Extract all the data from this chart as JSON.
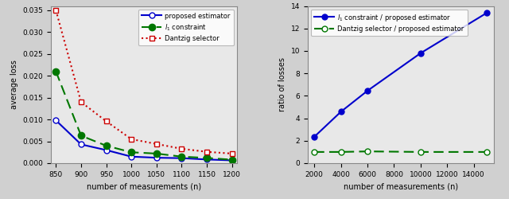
{
  "left": {
    "x": [
      850,
      900,
      950,
      1000,
      1050,
      1100,
      1150,
      1200
    ],
    "proposed": [
      0.0098,
      0.0043,
      0.003,
      0.0015,
      0.00125,
      0.00115,
      0.00085,
      0.00065
    ],
    "l1": [
      0.021,
      0.0063,
      0.004,
      0.0025,
      0.0022,
      0.0015,
      0.0012,
      0.0008
    ],
    "dantzig": [
      0.035,
      0.014,
      0.0096,
      0.0055,
      0.0044,
      0.0033,
      0.0026,
      0.0022
    ],
    "xlabel": "number of measurements (n)",
    "ylabel": "average loss",
    "xlim": [
      840,
      1210
    ],
    "ylim": [
      0,
      0.036
    ],
    "yticks": [
      0,
      0.005,
      0.01,
      0.015,
      0.02,
      0.025,
      0.03,
      0.035
    ],
    "xticks": [
      850,
      900,
      950,
      1000,
      1050,
      1100,
      1150,
      1200
    ],
    "proposed_color": "#0000cc",
    "l1_color": "#007700",
    "dantzig_color": "#cc0000",
    "legend_labels": [
      "proposed estimator",
      "$l_1$ constraint",
      "Dantzig selector"
    ]
  },
  "right": {
    "x": [
      2000,
      4000,
      6000,
      10000,
      15000
    ],
    "l1_ratio": [
      2.35,
      4.58,
      6.45,
      9.8,
      13.4
    ],
    "dantzig_ratio": [
      1.0,
      1.0,
      1.05,
      1.0,
      1.0
    ],
    "xlabel": "number of measurements (n)",
    "ylabel": "ratio of losses",
    "xlim": [
      1500,
      15500
    ],
    "ylim": [
      0,
      14
    ],
    "yticks": [
      0,
      2,
      4,
      6,
      8,
      10,
      12,
      14
    ],
    "xticks": [
      2000,
      4000,
      6000,
      8000,
      10000,
      12000,
      14000
    ],
    "l1_color": "#0000cc",
    "dantzig_color": "#007700",
    "legend_labels": [
      "$l_1$ constraint / proposed estimator",
      "Dantzig selector / proposed estimator"
    ]
  },
  "bg_color": "#e8e8e8",
  "figure_bg": "#d0d0d0"
}
